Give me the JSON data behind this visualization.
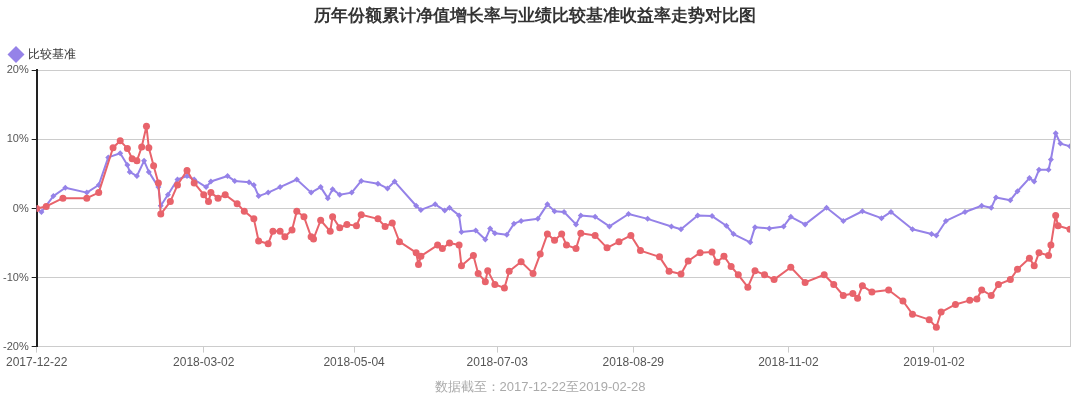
{
  "chart_data": {
    "type": "line",
    "title": "历年份额累计净值增长率与业绩比较基准收益率走势对比图",
    "annotations": [
      "数据截至：2017-12-22至2019-02-28"
    ],
    "legend": "top left",
    "grid": "y",
    "line_style": "solid",
    "xlim": [
      "2017-12-22",
      "2019-02-28"
    ],
    "xticks": [
      "2017-12-22",
      "2018-03-02",
      "2018-05-04",
      "2018-07-03",
      "2018-08-29",
      "2018-11-02",
      "2019-01-02"
    ],
    "ylim": [
      -20,
      20
    ],
    "yticks": [
      {
        "value": 20,
        "label": "20%"
      },
      {
        "value": 10,
        "label": "10%"
      },
      {
        "value": 0,
        "label": "0%"
      },
      {
        "value": -10,
        "label": "-10%"
      },
      {
        "value": -20,
        "label": "-20%"
      }
    ],
    "series": [
      {
        "color": "#e8636b",
        "marker": "circle",
        "x": [
          "2017-12-22",
          "2017-12-26",
          "2018-01-02",
          "2018-01-12",
          "2018-01-17",
          "2018-01-23",
          "2018-01-26",
          "2018-01-29",
          "2018-01-31",
          "2018-02-02",
          "2018-02-04",
          "2018-02-06",
          "2018-02-07",
          "2018-02-09",
          "2018-02-11",
          "2018-02-12",
          "2018-02-16",
          "2018-02-19",
          "2018-02-23",
          "2018-02-26",
          "2018-03-02",
          "2018-03-04",
          "2018-03-05",
          "2018-03-08",
          "2018-03-11",
          "2018-03-16",
          "2018-03-19",
          "2018-03-23",
          "2018-03-25",
          "2018-03-29",
          "2018-03-31",
          "2018-04-03",
          "2018-04-05",
          "2018-04-08",
          "2018-04-10",
          "2018-04-13",
          "2018-04-16",
          "2018-04-17",
          "2018-04-20",
          "2018-04-24",
          "2018-04-25",
          "2018-04-28",
          "2018-05-01",
          "2018-05-05",
          "2018-05-07",
          "2018-05-14",
          "2018-05-17",
          "2018-05-20",
          "2018-05-23",
          "2018-05-30",
          "2018-05-31",
          "2018-06-01",
          "2018-06-08",
          "2018-06-10",
          "2018-06-13",
          "2018-06-17",
          "2018-06-18",
          "2018-06-23",
          "2018-06-25",
          "2018-06-28",
          "2018-06-29",
          "2018-07-02",
          "2018-07-06",
          "2018-07-08",
          "2018-07-13",
          "2018-07-18",
          "2018-07-21",
          "2018-07-24",
          "2018-07-27",
          "2018-07-30",
          "2018-08-01",
          "2018-08-05",
          "2018-08-07",
          "2018-08-13",
          "2018-08-18",
          "2018-08-23",
          "2018-08-28",
          "2018-09-01",
          "2018-09-09",
          "2018-09-13",
          "2018-09-18",
          "2018-09-21",
          "2018-09-26",
          "2018-10-01",
          "2018-10-03",
          "2018-10-06",
          "2018-10-09",
          "2018-10-12",
          "2018-10-16",
          "2018-10-19",
          "2018-10-23",
          "2018-10-27",
          "2018-11-03",
          "2018-11-09",
          "2018-11-17",
          "2018-11-21",
          "2018-11-25",
          "2018-11-29",
          "2018-12-01",
          "2018-12-03",
          "2018-12-07",
          "2018-12-14",
          "2018-12-20",
          "2018-12-24",
          "2018-12-31",
          "2019-01-03",
          "2019-01-05",
          "2019-01-11",
          "2019-01-17",
          "2019-01-20",
          "2019-01-22",
          "2019-01-26",
          "2019-01-29",
          "2019-02-03",
          "2019-02-06",
          "2019-02-11",
          "2019-02-13",
          "2019-02-15",
          "2019-02-19",
          "2019-02-20",
          "2019-02-22",
          "2019-02-23",
          "2019-02-28"
        ],
        "values": [
          0,
          0.3,
          1.5,
          1.5,
          2.3,
          8.8,
          9.8,
          8.7,
          7.2,
          6.9,
          8.9,
          11.9,
          8.8,
          6.2,
          3.7,
          -0.8,
          1.0,
          3.4,
          5.5,
          3.7,
          2.0,
          1.0,
          2.3,
          1.5,
          2.0,
          0.7,
          -0.4,
          -1.5,
          -4.7,
          -5.1,
          -3.3,
          -3.3,
          -4.1,
          -3.1,
          -0.4,
          -1.2,
          -4.1,
          -4.4,
          -1.7,
          -3.3,
          -1.2,
          -2.8,
          -2.3,
          -2.5,
          -0.9,
          -1.5,
          -2.6,
          -2.1,
          -4.8,
          -6.4,
          -8.1,
          -6.9,
          -5.3,
          -5.8,
          -5.0,
          -5.3,
          -8.3,
          -6.8,
          -9.4,
          -10.6,
          -9.0,
          -11.0,
          -11.5,
          -9.1,
          -7.7,
          -9.4,
          -6.6,
          -3.7,
          -4.6,
          -3.7,
          -5.3,
          -5.8,
          -3.6,
          -3.9,
          -5.7,
          -4.8,
          -3.9,
          -6.1,
          -7.0,
          -9.1,
          -9.5,
          -7.6,
          -6.4,
          -6.3,
          -7.8,
          -6.9,
          -8.4,
          -9.6,
          -11.4,
          -9.0,
          -9.6,
          -10.3,
          -8.5,
          -10.7,
          -9.6,
          -11.0,
          -12.6,
          -12.3,
          -13.0,
          -11.2,
          -12.1,
          -11.8,
          -13.4,
          -15.3,
          -16.1,
          -17.2,
          -15.0,
          -13.9,
          -13.3,
          -13.1,
          -11.8,
          -12.6,
          -11.0,
          -10.3,
          -8.8,
          -7.2,
          -8.3,
          -6.4,
          -6.8,
          -5.3,
          -1.0,
          -2.5,
          -3.0
        ]
      },
      {
        "name": "比较基准",
        "color": "#9582e8",
        "marker": "diamond",
        "x": [
          "2017-12-22",
          "2017-12-24",
          "2017-12-29",
          "2018-01-03",
          "2018-01-12",
          "2018-01-17",
          "2018-01-21",
          "2018-01-26",
          "2018-01-29",
          "2018-01-30",
          "2018-02-02",
          "2018-02-05",
          "2018-02-07",
          "2018-02-11",
          "2018-02-12",
          "2018-02-15",
          "2018-02-19",
          "2018-02-23",
          "2018-02-26",
          "2018-03-03",
          "2018-03-05",
          "2018-03-12",
          "2018-03-15",
          "2018-03-21",
          "2018-03-23",
          "2018-03-25",
          "2018-03-29",
          "2018-04-03",
          "2018-04-10",
          "2018-04-16",
          "2018-04-20",
          "2018-04-23",
          "2018-04-25",
          "2018-04-28",
          "2018-05-03",
          "2018-05-07",
          "2018-05-14",
          "2018-05-18",
          "2018-05-21",
          "2018-05-30",
          "2018-06-01",
          "2018-06-07",
          "2018-06-11",
          "2018-06-13",
          "2018-06-17",
          "2018-06-18",
          "2018-06-24",
          "2018-06-28",
          "2018-06-30",
          "2018-07-02",
          "2018-07-07",
          "2018-07-10",
          "2018-07-13",
          "2018-07-20",
          "2018-07-24",
          "2018-07-27",
          "2018-07-31",
          "2018-08-05",
          "2018-08-07",
          "2018-08-13",
          "2018-08-19",
          "2018-08-27",
          "2018-09-04",
          "2018-09-14",
          "2018-09-18",
          "2018-09-25",
          "2018-10-01",
          "2018-10-07",
          "2018-10-10",
          "2018-10-17",
          "2018-10-19",
          "2018-10-25",
          "2018-10-31",
          "2018-11-03",
          "2018-11-09",
          "2018-11-18",
          "2018-11-25",
          "2018-12-03",
          "2018-12-11",
          "2018-12-15",
          "2018-12-24",
          "2019-01-01",
          "2019-01-03",
          "2019-01-07",
          "2019-01-15",
          "2019-01-22",
          "2019-01-26",
          "2019-01-28",
          "2019-02-03",
          "2019-02-06",
          "2019-02-11",
          "2019-02-13",
          "2019-02-15",
          "2019-02-19",
          "2019-02-20",
          "2019-02-22",
          "2019-02-24",
          "2019-02-28"
        ],
        "values": [
          0,
          -0.5,
          1.8,
          3.0,
          2.3,
          3.4,
          7.4,
          8.0,
          6.3,
          5.3,
          4.7,
          6.9,
          5.3,
          3.1,
          0.4,
          2.0,
          4.2,
          4.7,
          4.2,
          3.1,
          3.9,
          4.7,
          4.0,
          3.8,
          3.4,
          1.8,
          2.3,
          3.1,
          4.2,
          2.3,
          3.1,
          1.5,
          2.8,
          2.0,
          2.3,
          4.0,
          3.6,
          2.9,
          3.9,
          0.4,
          -0.2,
          0.6,
          -0.3,
          0.1,
          -1.0,
          -3.4,
          -3.2,
          -4.5,
          -2.9,
          -3.6,
          -3.8,
          -2.2,
          -1.8,
          -1.5,
          0.6,
          -0.4,
          -0.5,
          -2.3,
          -1.0,
          -1.2,
          -2.6,
          -0.8,
          -1.5,
          -2.6,
          -3.0,
          -1.0,
          -1.1,
          -2.5,
          -3.7,
          -4.9,
          -2.7,
          -2.9,
          -2.6,
          -1.2,
          -2.3,
          0.1,
          -1.8,
          -0.4,
          -1.4,
          -0.5,
          -3.0,
          -3.7,
          -3.9,
          -1.8,
          -0.5,
          0.4,
          0.1,
          1.6,
          1.2,
          2.5,
          4.4,
          3.9,
          5.6,
          5.6,
          7.1,
          10.9,
          9.4,
          9.0
        ]
      }
    ]
  }
}
